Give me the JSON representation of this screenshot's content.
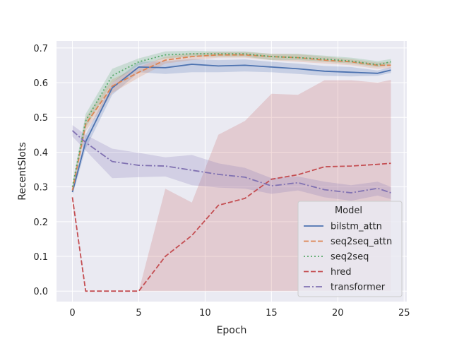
{
  "chart_data": {
    "type": "line",
    "title": "",
    "xlabel": "Epoch",
    "ylabel": "RecentSlots",
    "xlim": [
      -1.2,
      25.2
    ],
    "ylim": [
      -0.03,
      0.72
    ],
    "x_ticks": [
      0,
      5,
      10,
      15,
      20,
      25
    ],
    "y_ticks": [
      0.0,
      0.1,
      0.2,
      0.3,
      0.4,
      0.5,
      0.6,
      0.7
    ],
    "grid": true,
    "legend": {
      "title": "Model",
      "position": "lower-right"
    },
    "x": [
      0,
      1,
      3,
      5,
      7,
      9,
      11,
      13,
      15,
      17,
      19,
      21,
      23,
      24
    ],
    "series": [
      {
        "name": "bilstm_attn",
        "color": "#4c72b0",
        "dash": "solid",
        "values": [
          0.285,
          0.43,
          0.585,
          0.645,
          0.643,
          0.653,
          0.648,
          0.65,
          0.645,
          0.64,
          0.633,
          0.63,
          0.627,
          0.636
        ],
        "lower": [
          0.275,
          0.41,
          0.565,
          0.63,
          0.625,
          0.63,
          0.63,
          0.632,
          0.63,
          0.625,
          0.62,
          0.618,
          0.62,
          0.628
        ],
        "upper": [
          0.295,
          0.45,
          0.6,
          0.66,
          0.662,
          0.668,
          0.665,
          0.667,
          0.66,
          0.655,
          0.648,
          0.645,
          0.635,
          0.645
        ]
      },
      {
        "name": "seq2seq_attn",
        "color": "#dd8452",
        "dash": "dashed",
        "values": [
          0.29,
          0.48,
          0.59,
          0.63,
          0.665,
          0.675,
          0.68,
          0.68,
          0.675,
          0.672,
          0.665,
          0.66,
          0.65,
          0.65
        ],
        "lower": [
          0.28,
          0.46,
          0.57,
          0.615,
          0.655,
          0.665,
          0.672,
          0.672,
          0.665,
          0.66,
          0.655,
          0.65,
          0.64,
          0.642
        ],
        "upper": [
          0.3,
          0.5,
          0.61,
          0.645,
          0.675,
          0.685,
          0.688,
          0.688,
          0.683,
          0.682,
          0.675,
          0.668,
          0.658,
          0.66
        ]
      },
      {
        "name": "seq2seq",
        "color": "#55a868",
        "dash": "dotted",
        "values": [
          0.3,
          0.49,
          0.62,
          0.66,
          0.68,
          0.683,
          0.683,
          0.683,
          0.675,
          0.672,
          0.668,
          0.662,
          0.652,
          0.66
        ],
        "lower": [
          0.29,
          0.47,
          0.6,
          0.65,
          0.67,
          0.675,
          0.675,
          0.675,
          0.665,
          0.665,
          0.66,
          0.655,
          0.645,
          0.65
        ],
        "upper": [
          0.31,
          0.51,
          0.64,
          0.67,
          0.69,
          0.692,
          0.69,
          0.69,
          0.683,
          0.683,
          0.678,
          0.672,
          0.662,
          0.668
        ]
      },
      {
        "name": "hred",
        "color": "#c44e52",
        "dash": "dashed",
        "values": [
          0.27,
          0.0,
          0.0,
          0.0,
          0.1,
          0.16,
          0.247,
          0.267,
          0.322,
          0.335,
          0.358,
          0.36,
          0.365,
          0.368
        ],
        "lower": [
          0.26,
          0.0,
          0.0,
          0.0,
          0.0,
          0.0,
          0.0,
          0.0,
          0.0,
          0.0,
          0.0,
          0.0,
          0.0,
          0.0
        ],
        "upper": [
          0.28,
          0.0,
          0.0,
          0.0,
          0.295,
          0.255,
          0.45,
          0.49,
          0.568,
          0.565,
          0.607,
          0.607,
          0.6,
          0.608
        ]
      },
      {
        "name": "transformer",
        "color": "#8172b2",
        "dash": "dashdot",
        "values": [
          0.462,
          0.428,
          0.373,
          0.362,
          0.36,
          0.348,
          0.336,
          0.328,
          0.303,
          0.312,
          0.292,
          0.283,
          0.296,
          0.283
        ],
        "lower": [
          0.445,
          0.405,
          0.325,
          0.328,
          0.33,
          0.305,
          0.298,
          0.295,
          0.28,
          0.29,
          0.27,
          0.26,
          0.275,
          0.265
        ],
        "upper": [
          0.478,
          0.45,
          0.41,
          0.398,
          0.385,
          0.392,
          0.368,
          0.355,
          0.325,
          0.33,
          0.315,
          0.305,
          0.315,
          0.3
        ]
      }
    ]
  }
}
